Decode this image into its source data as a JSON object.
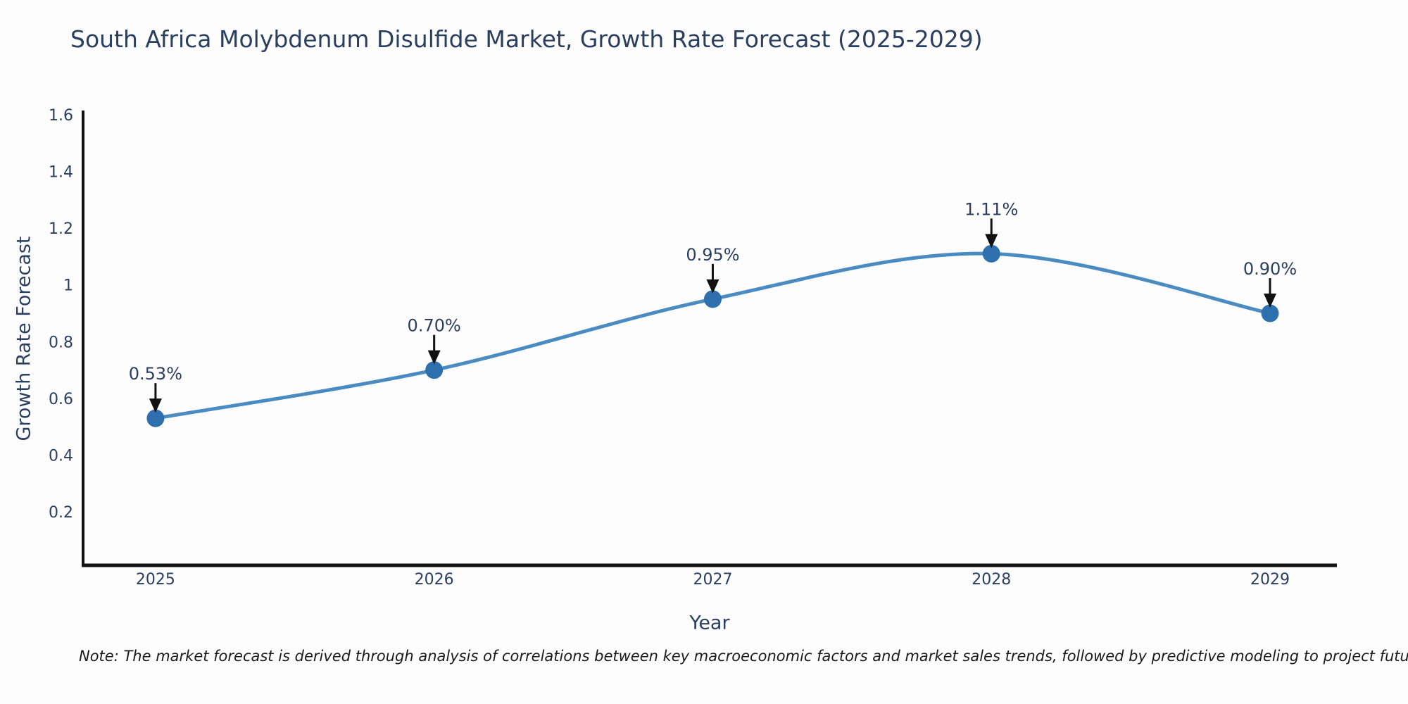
{
  "page": {
    "note": "Note: The market forecast is derived through analysis of correlations between key macroeconomic factors and market sales trends, followed by predictive modeling to project future sales"
  },
  "chart_data": {
    "type": "line",
    "title": "South Africa Molybdenum Disulfide Market, Growth Rate Forecast (2025-2029)",
    "xlabel": "Year",
    "ylabel": "Growth Rate Forecast",
    "x": [
      2025,
      2026,
      2027,
      2028,
      2029
    ],
    "series": [
      {
        "name": "Growth Rate Forecast",
        "values": [
          0.53,
          0.7,
          0.95,
          1.11,
          0.9
        ],
        "point_labels": [
          "0.53%",
          "0.70%",
          "0.95%",
          "1.11%",
          "0.90%"
        ]
      }
    ],
    "x_tick_labels": [
      "2025",
      "2026",
      "2027",
      "2028",
      "2029"
    ],
    "y_ticks": [
      0.2,
      0.4,
      0.6,
      0.8,
      1,
      1.2,
      1.4,
      1.6
    ],
    "y_tick_labels": [
      "0.2",
      "0.4",
      "0.6",
      "0.8",
      "1",
      "1.2",
      "1.4",
      "1.6"
    ],
    "x_range": [
      2024.74,
      2029.24
    ],
    "y_range": [
      0.012,
      1.607
    ],
    "grid": false,
    "legend": "none",
    "line_shape": "spline",
    "colors": {
      "line": "#4a8bc2",
      "marker": "#2e6fae",
      "axis": "#111111",
      "tick_text": "#2a3f5f",
      "annotation_text": "#2a3f5f",
      "arrow": "#111111"
    }
  }
}
